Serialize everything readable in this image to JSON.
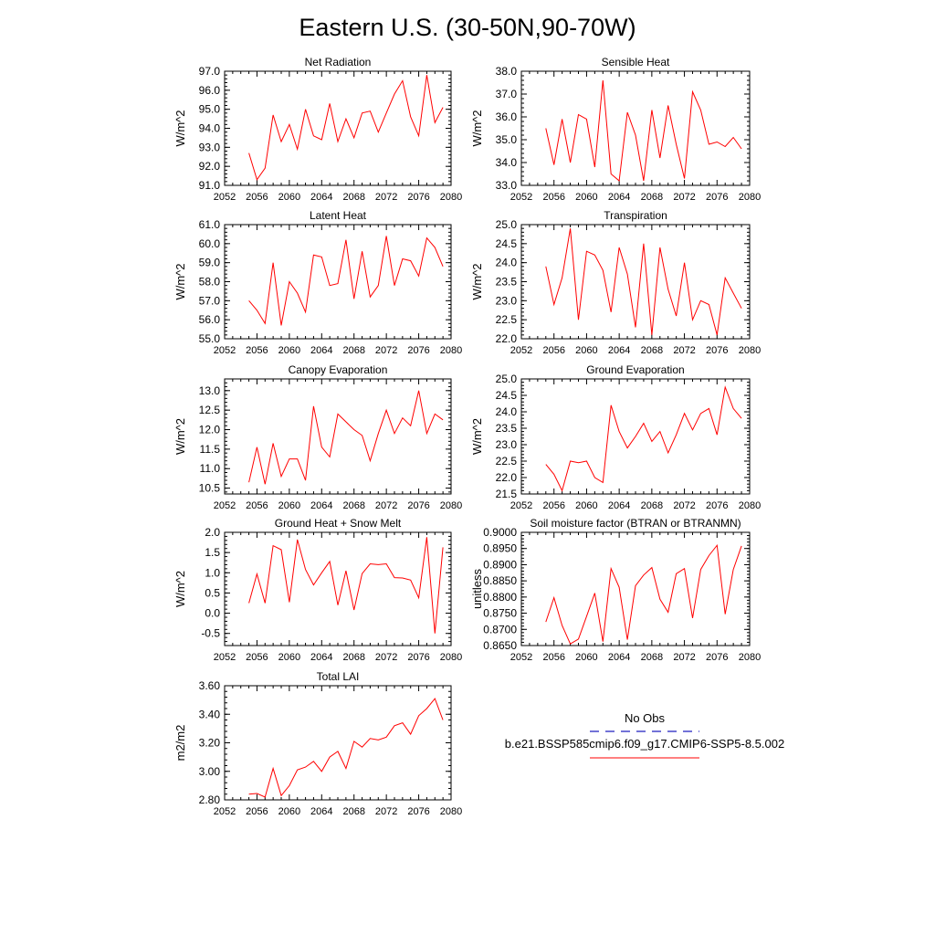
{
  "title": "Eastern U.S. (30-50N,90-70W)",
  "legend": {
    "items": [
      {
        "label": "No Obs",
        "color": "#1f1fbf",
        "style": "dashed"
      },
      {
        "label": "b.e21.BSSP585cmip6.f09_g17.CMIP6-SSP5-8.5.002",
        "color": "#ff0000",
        "style": "solid"
      }
    ]
  },
  "chart_data": [
    {
      "type": "line",
      "title": "Net Radiation",
      "ylabel": "W/m^2",
      "xlim": [
        2052,
        2080
      ],
      "ylim": [
        91.0,
        97.0
      ],
      "xticks": [
        "2052",
        "2056",
        "2060",
        "2064",
        "2068",
        "2072",
        "2076",
        "2080"
      ],
      "yticks": [
        "91.0",
        "92.0",
        "93.0",
        "94.0",
        "95.0",
        "96.0",
        "97.0"
      ],
      "x": [
        2055,
        2056,
        2057,
        2058,
        2059,
        2060,
        2061,
        2062,
        2063,
        2064,
        2065,
        2066,
        2067,
        2068,
        2069,
        2070,
        2071,
        2072,
        2073,
        2074,
        2075,
        2076,
        2077,
        2078,
        2079
      ],
      "series": [
        {
          "values": [
            92.7,
            91.3,
            91.9,
            94.7,
            93.3,
            94.2,
            92.9,
            95.0,
            93.6,
            93.4,
            95.3,
            93.3,
            94.5,
            93.5,
            94.8,
            94.9,
            93.8,
            94.8,
            95.8,
            96.5,
            94.6,
            93.6,
            96.8,
            94.3,
            95.1
          ],
          "color": "#ff0000"
        }
      ]
    },
    {
      "type": "line",
      "title": "Sensible Heat",
      "ylabel": "W/m^2",
      "xlim": [
        2052,
        2080
      ],
      "ylim": [
        33.0,
        38.0
      ],
      "xticks": [
        "2052",
        "2056",
        "2060",
        "2064",
        "2068",
        "2072",
        "2076",
        "2080"
      ],
      "yticks": [
        "33.0",
        "34.0",
        "35.0",
        "36.0",
        "37.0",
        "38.0"
      ],
      "x": [
        2055,
        2056,
        2057,
        2058,
        2059,
        2060,
        2061,
        2062,
        2063,
        2064,
        2065,
        2066,
        2067,
        2068,
        2069,
        2070,
        2071,
        2072,
        2073,
        2074,
        2075,
        2076,
        2077,
        2078,
        2079
      ],
      "series": [
        {
          "values": [
            35.5,
            33.9,
            35.9,
            34.0,
            36.1,
            35.9,
            33.8,
            37.6,
            33.5,
            33.2,
            36.2,
            35.2,
            33.2,
            36.3,
            34.2,
            36.5,
            34.8,
            33.3,
            37.1,
            36.3,
            34.8,
            34.9,
            34.7,
            35.1,
            34.6
          ],
          "color": "#ff0000"
        }
      ]
    },
    {
      "type": "line",
      "title": "Latent Heat",
      "ylabel": "W/m^2",
      "xlim": [
        2052,
        2080
      ],
      "ylim": [
        55.0,
        61.0
      ],
      "xticks": [
        "2052",
        "2056",
        "2060",
        "2064",
        "2068",
        "2072",
        "2076",
        "2080"
      ],
      "yticks": [
        "55.0",
        "56.0",
        "57.0",
        "58.0",
        "59.0",
        "60.0",
        "61.0"
      ],
      "x": [
        2055,
        2056,
        2057,
        2058,
        2059,
        2060,
        2061,
        2062,
        2063,
        2064,
        2065,
        2066,
        2067,
        2068,
        2069,
        2070,
        2071,
        2072,
        2073,
        2074,
        2075,
        2076,
        2077,
        2078,
        2079
      ],
      "series": [
        {
          "values": [
            57.0,
            56.5,
            55.8,
            59.0,
            55.7,
            58.0,
            57.4,
            56.4,
            59.4,
            59.3,
            57.8,
            57.9,
            60.2,
            57.1,
            59.6,
            57.2,
            57.8,
            60.4,
            57.8,
            59.2,
            59.1,
            58.3,
            60.3,
            59.8,
            58.8
          ],
          "color": "#ff0000"
        }
      ]
    },
    {
      "type": "line",
      "title": "Transpiration",
      "ylabel": "W/m^2",
      "xlim": [
        2052,
        2080
      ],
      "ylim": [
        22.0,
        25.0
      ],
      "xticks": [
        "2052",
        "2056",
        "2060",
        "2064",
        "2068",
        "2072",
        "2076",
        "2080"
      ],
      "yticks": [
        "22.0",
        "22.5",
        "23.0",
        "23.5",
        "24.0",
        "24.5",
        "25.0"
      ],
      "x": [
        2055,
        2056,
        2057,
        2058,
        2059,
        2060,
        2061,
        2062,
        2063,
        2064,
        2065,
        2066,
        2067,
        2068,
        2069,
        2070,
        2071,
        2072,
        2073,
        2074,
        2075,
        2076,
        2077,
        2078,
        2079
      ],
      "series": [
        {
          "values": [
            23.9,
            22.9,
            23.6,
            24.9,
            22.5,
            24.3,
            24.2,
            23.8,
            22.7,
            24.4,
            23.7,
            22.3,
            24.5,
            22.1,
            24.4,
            23.3,
            22.6,
            24.0,
            22.5,
            23.0,
            22.9,
            22.1,
            23.6,
            23.2,
            22.8
          ],
          "color": "#ff0000"
        }
      ]
    },
    {
      "type": "line",
      "title": "Canopy Evaporation",
      "ylabel": "W/m^2",
      "xlim": [
        2052,
        2080
      ],
      "ylim": [
        10.35,
        13.3
      ],
      "xticks": [
        "2052",
        "2056",
        "2060",
        "2064",
        "2068",
        "2072",
        "2076",
        "2080"
      ],
      "yticks": [
        "10.5",
        "11.0",
        "11.5",
        "12.0",
        "12.5",
        "13.0"
      ],
      "x": [
        2055,
        2056,
        2057,
        2058,
        2059,
        2060,
        2061,
        2062,
        2063,
        2064,
        2065,
        2066,
        2067,
        2068,
        2069,
        2070,
        2071,
        2072,
        2073,
        2074,
        2075,
        2076,
        2077,
        2078,
        2079
      ],
      "series": [
        {
          "values": [
            10.65,
            11.55,
            10.6,
            11.65,
            10.8,
            11.25,
            11.25,
            10.7,
            12.6,
            11.55,
            11.3,
            12.4,
            12.2,
            12.0,
            11.85,
            11.2,
            11.9,
            12.5,
            11.9,
            12.3,
            12.1,
            13.0,
            11.9,
            12.4,
            12.25
          ],
          "color": "#ff0000"
        }
      ]
    },
    {
      "type": "line",
      "title": "Ground Evaporation",
      "ylabel": "W/m^2",
      "xlim": [
        2052,
        2080
      ],
      "ylim": [
        21.5,
        25.0
      ],
      "xticks": [
        "2052",
        "2056",
        "2060",
        "2064",
        "2068",
        "2072",
        "2076",
        "2080"
      ],
      "yticks": [
        "21.5",
        "22.0",
        "22.5",
        "23.0",
        "23.5",
        "24.0",
        "24.5",
        "25.0"
      ],
      "x": [
        2055,
        2056,
        2057,
        2058,
        2059,
        2060,
        2061,
        2062,
        2063,
        2064,
        2065,
        2066,
        2067,
        2068,
        2069,
        2070,
        2071,
        2072,
        2073,
        2074,
        2075,
        2076,
        2077,
        2078,
        2079
      ],
      "series": [
        {
          "values": [
            22.4,
            22.1,
            21.6,
            22.5,
            22.45,
            22.5,
            22.0,
            21.85,
            24.2,
            23.4,
            22.9,
            23.25,
            23.65,
            23.1,
            23.4,
            22.75,
            23.3,
            23.95,
            23.45,
            23.95,
            24.1,
            23.3,
            24.75,
            24.1,
            23.8
          ],
          "color": "#ff0000"
        }
      ]
    },
    {
      "type": "line",
      "title": "Ground Heat + Snow Melt",
      "ylabel": "W/m^2",
      "xlim": [
        2052,
        2080
      ],
      "ylim": [
        -0.8,
        2.0
      ],
      "xticks": [
        "2052",
        "2056",
        "2060",
        "2064",
        "2068",
        "2072",
        "2076",
        "2080"
      ],
      "yticks": [
        "-0.5",
        "0.0",
        "0.5",
        "1.0",
        "1.5",
        "2.0"
      ],
      "x": [
        2055,
        2056,
        2057,
        2058,
        2059,
        2060,
        2061,
        2062,
        2063,
        2064,
        2065,
        2066,
        2067,
        2068,
        2069,
        2070,
        2071,
        2072,
        2073,
        2074,
        2075,
        2076,
        2077,
        2078,
        2079
      ],
      "series": [
        {
          "values": [
            0.25,
            0.97,
            0.25,
            1.67,
            1.57,
            0.27,
            1.82,
            1.08,
            0.7,
            1.0,
            1.28,
            0.2,
            1.05,
            0.08,
            0.98,
            1.22,
            1.2,
            1.22,
            0.88,
            0.87,
            0.82,
            0.38,
            1.88,
            -0.5,
            1.63
          ],
          "color": "#ff0000"
        }
      ]
    },
    {
      "type": "line",
      "title": "Soil moisture factor (BTRAN or BTRANMN)",
      "ylabel": "unitless",
      "xlim": [
        2052,
        2080
      ],
      "ylim": [
        0.865,
        0.9
      ],
      "xticks": [
        "2052",
        "2056",
        "2060",
        "2064",
        "2068",
        "2072",
        "2076",
        "2080"
      ],
      "yticks": [
        "0.8650",
        "0.8700",
        "0.8750",
        "0.8800",
        "0.8850",
        "0.8900",
        "0.8950",
        "0.9000"
      ],
      "x": [
        2055,
        2056,
        2057,
        2058,
        2059,
        2060,
        2061,
        2062,
        2063,
        2064,
        2065,
        2066,
        2067,
        2068,
        2069,
        2070,
        2071,
        2072,
        2073,
        2074,
        2075,
        2076,
        2077,
        2078,
        2079
      ],
      "series": [
        {
          "values": [
            0.8723,
            0.8798,
            0.8712,
            0.8655,
            0.867,
            0.874,
            0.8812,
            0.8662,
            0.8888,
            0.883,
            0.8668,
            0.8835,
            0.8868,
            0.8891,
            0.8793,
            0.8753,
            0.8872,
            0.8888,
            0.8735,
            0.8885,
            0.8928,
            0.896,
            0.8747,
            0.8885,
            0.8958
          ],
          "color": "#ff0000"
        }
      ]
    },
    {
      "type": "line",
      "title": "Total LAI",
      "ylabel": "m2/m2",
      "xlim": [
        2052,
        2080
      ],
      "ylim": [
        2.8,
        3.6
      ],
      "xticks": [
        "2052",
        "2056",
        "2060",
        "2064",
        "2068",
        "2072",
        "2076",
        "2080"
      ],
      "yticks": [
        "2.80",
        "3.00",
        "3.20",
        "3.40",
        "3.60"
      ],
      "x": [
        2055,
        2056,
        2057,
        2058,
        2059,
        2060,
        2061,
        2062,
        2063,
        2064,
        2065,
        2066,
        2067,
        2068,
        2069,
        2070,
        2071,
        2072,
        2073,
        2074,
        2075,
        2076,
        2077,
        2078,
        2079
      ],
      "series": [
        {
          "values": [
            2.84,
            2.845,
            2.82,
            3.02,
            2.83,
            2.9,
            3.01,
            3.03,
            3.07,
            3.0,
            3.1,
            3.14,
            3.02,
            3.21,
            3.17,
            3.23,
            3.22,
            3.24,
            3.32,
            3.34,
            3.26,
            3.39,
            3.44,
            3.51,
            3.36
          ],
          "color": "#ff0000"
        }
      ]
    }
  ]
}
